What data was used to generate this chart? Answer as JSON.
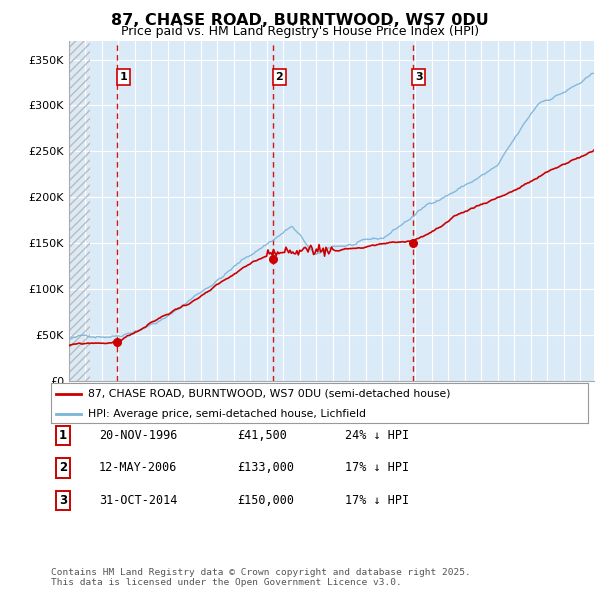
{
  "title": "87, CHASE ROAD, BURNTWOOD, WS7 0DU",
  "subtitle": "Price paid vs. HM Land Registry's House Price Index (HPI)",
  "ylabel_ticks": [
    "£0",
    "£50K",
    "£100K",
    "£150K",
    "£200K",
    "£250K",
    "£300K",
    "£350K"
  ],
  "ytick_values": [
    0,
    50000,
    100000,
    150000,
    200000,
    250000,
    300000,
    350000
  ],
  "ylim": [
    0,
    370000
  ],
  "xlim_start": 1994.0,
  "xlim_end": 2025.83,
  "hpi_color": "#7ab4d8",
  "price_color": "#cc0000",
  "transactions": [
    {
      "date_num": 1996.9,
      "price": 41500,
      "label": "1"
    },
    {
      "date_num": 2006.37,
      "price": 133000,
      "label": "2"
    },
    {
      "date_num": 2014.83,
      "price": 150000,
      "label": "3"
    }
  ],
  "legend_entries": [
    {
      "label": "87, CHASE ROAD, BURNTWOOD, WS7 0DU (semi-detached house)",
      "color": "#cc0000"
    },
    {
      "label": "HPI: Average price, semi-detached house, Lichfield",
      "color": "#7ab4d8"
    }
  ],
  "table_rows": [
    {
      "num": "1",
      "date": "20-NOV-1996",
      "price": "£41,500",
      "hpi": "24% ↓ HPI"
    },
    {
      "num": "2",
      "date": "12-MAY-2006",
      "price": "£133,000",
      "hpi": "17% ↓ HPI"
    },
    {
      "num": "3",
      "date": "31-OCT-2014",
      "price": "£150,000",
      "hpi": "17% ↓ HPI"
    }
  ],
  "footnote": "Contains HM Land Registry data © Crown copyright and database right 2025.\nThis data is licensed under the Open Government Licence v3.0.",
  "background_color": "#ffffff",
  "plot_bg_color": "#dbeaf7",
  "grid_color": "#ffffff",
  "hatch_region_end": 1995.25
}
